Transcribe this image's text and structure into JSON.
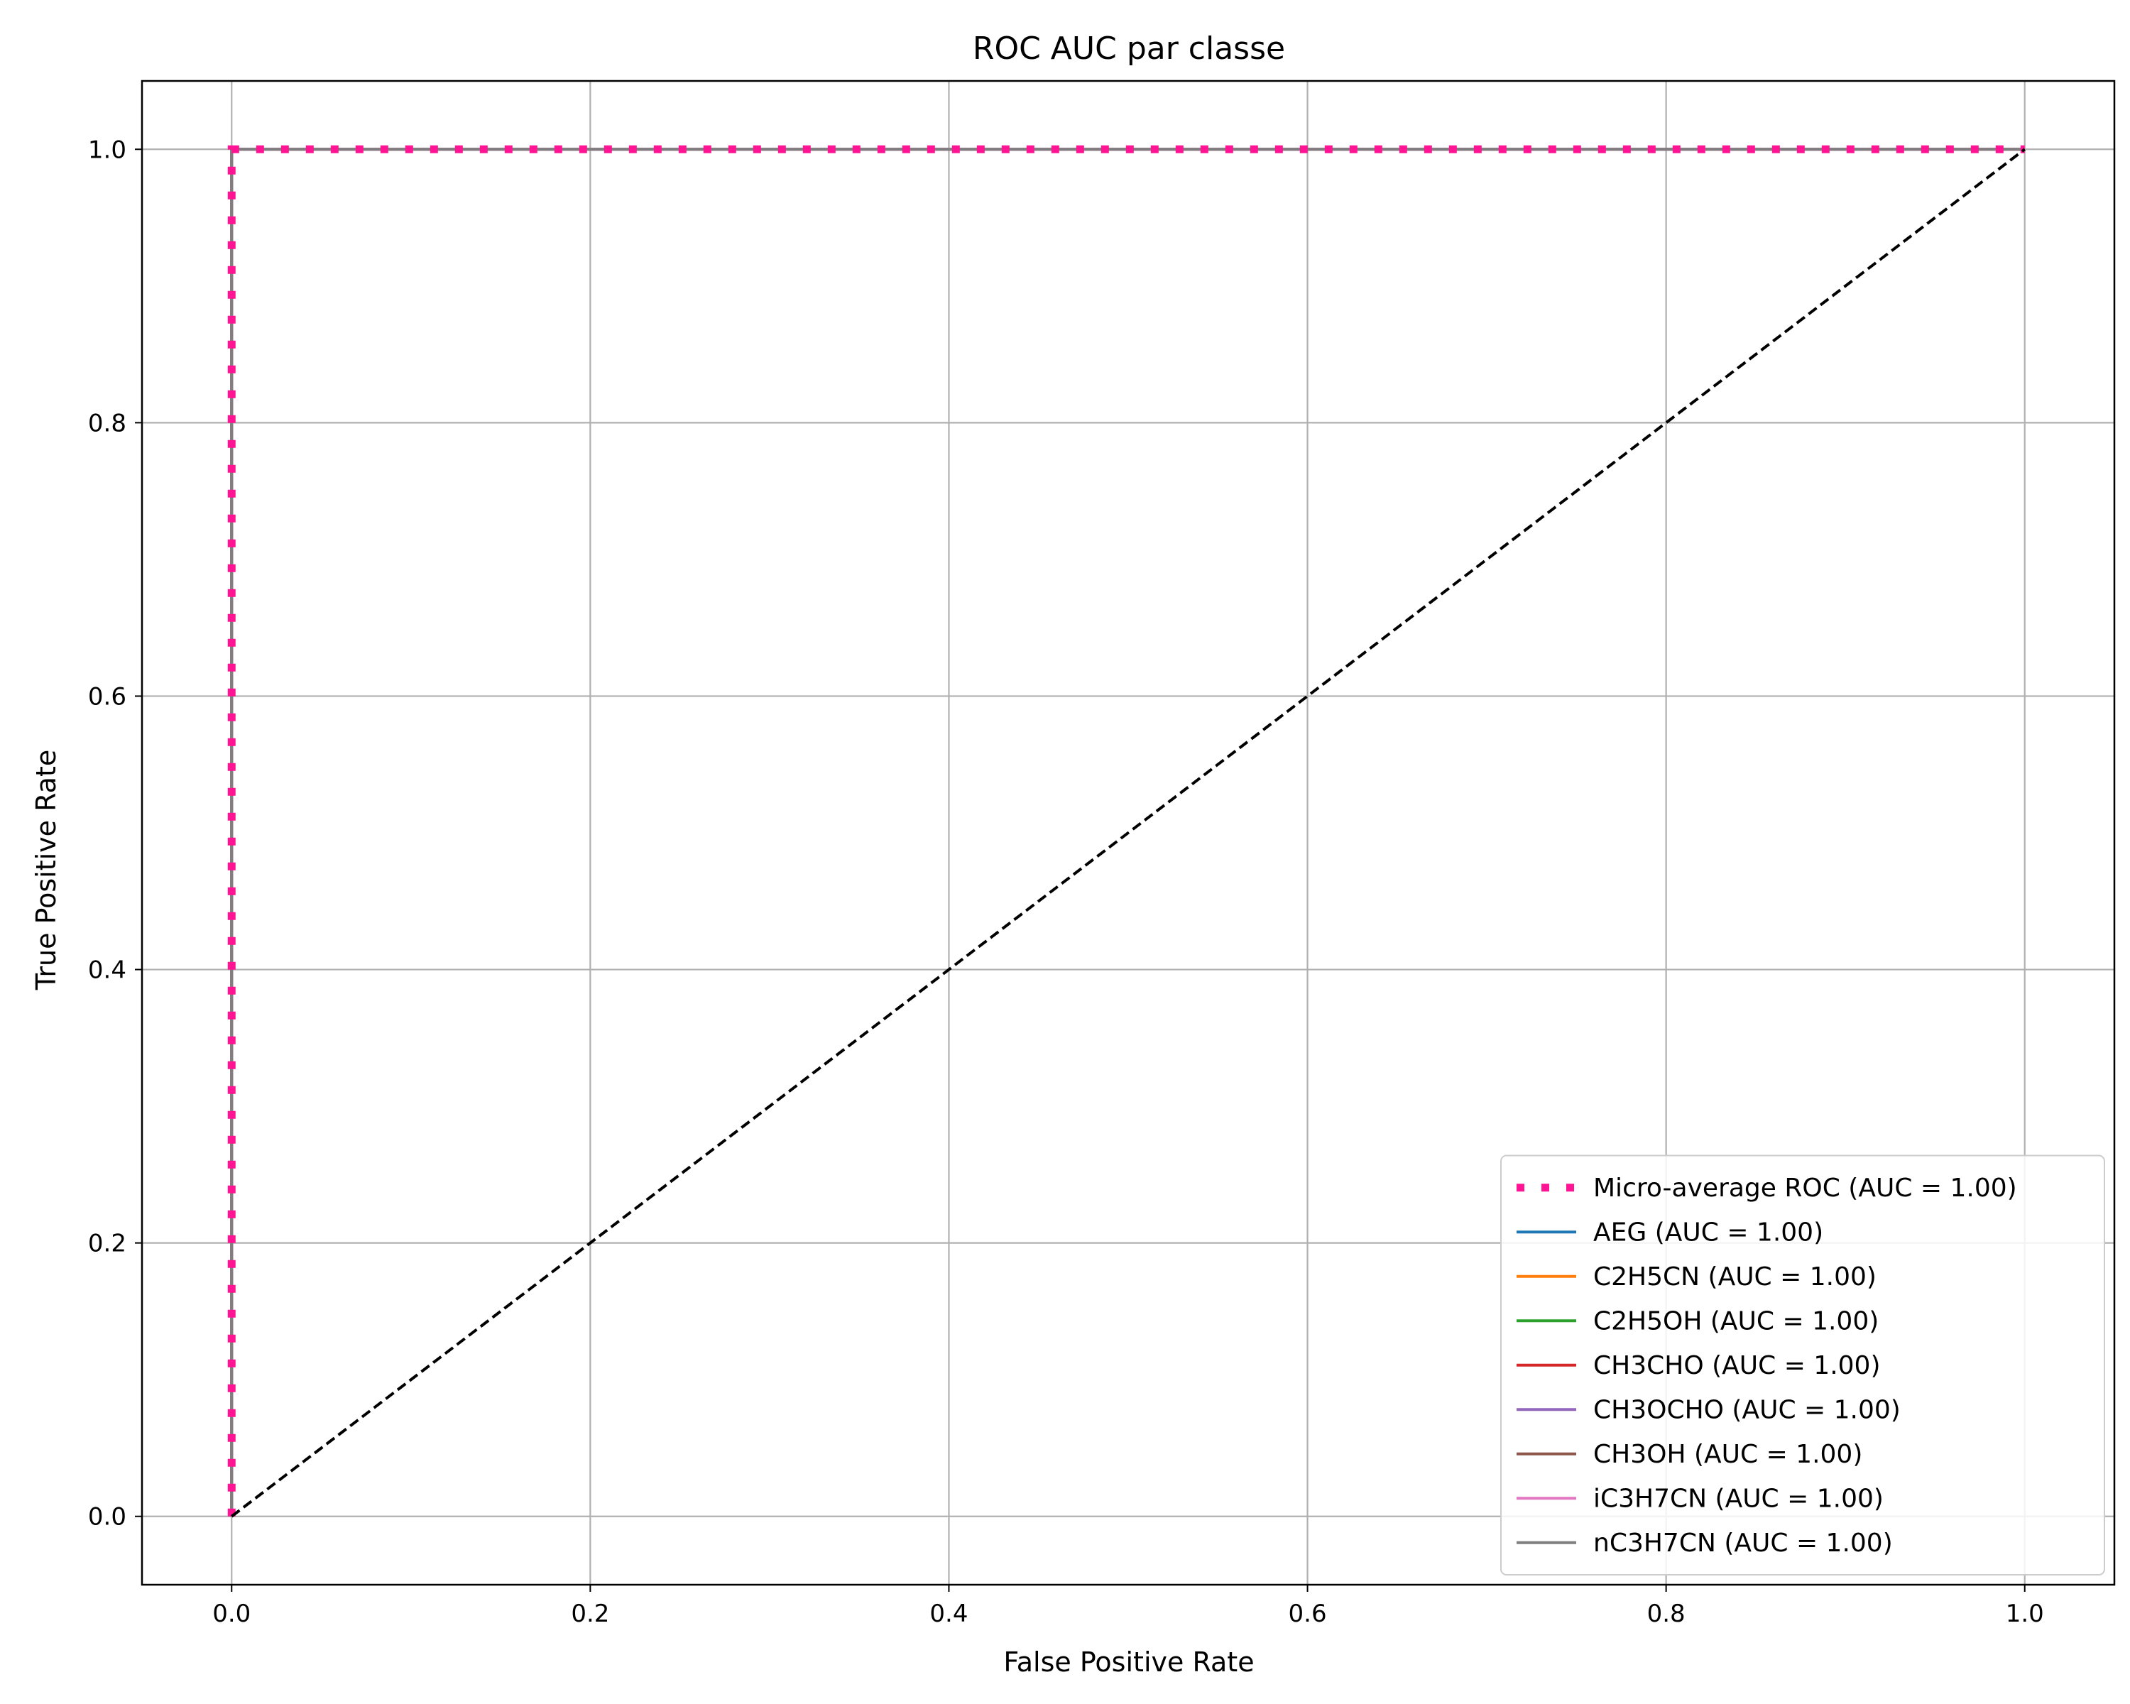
{
  "chart_data": {
    "type": "line",
    "title": "ROC AUC par classe",
    "xlabel": "False Positive Rate",
    "ylabel": "True Positive Rate",
    "xlim": [
      -0.05,
      1.05
    ],
    "ylim": [
      -0.05,
      1.05
    ],
    "xticks": [
      0.0,
      0.2,
      0.4,
      0.6,
      0.8,
      1.0
    ],
    "yticks": [
      0.0,
      0.2,
      0.4,
      0.6,
      0.8,
      1.0
    ],
    "xtick_labels": [
      "0.0",
      "0.2",
      "0.4",
      "0.6",
      "0.8",
      "1.0"
    ],
    "ytick_labels": [
      "0.0",
      "0.2",
      "0.4",
      "0.6",
      "0.8",
      "1.0"
    ],
    "grid": true,
    "legend_position": "lower-right",
    "series": [
      {
        "name": "Micro-average ROC (AUC = 1.00)",
        "color": "#ff1493",
        "style": "dotted",
        "x": [
          0.0,
          0.0,
          1.0
        ],
        "y": [
          0.0,
          1.0,
          1.0
        ]
      },
      {
        "name": "AEG (AUC = 1.00)",
        "color": "#1f77b4",
        "style": "solid",
        "x": [
          0.0,
          0.0,
          1.0
        ],
        "y": [
          0.0,
          1.0,
          1.0
        ]
      },
      {
        "name": "C2H5CN (AUC = 1.00)",
        "color": "#ff7f0e",
        "style": "solid",
        "x": [
          0.0,
          0.0,
          1.0
        ],
        "y": [
          0.0,
          1.0,
          1.0
        ]
      },
      {
        "name": "C2H5OH (AUC = 1.00)",
        "color": "#2ca02c",
        "style": "solid",
        "x": [
          0.0,
          0.0,
          1.0
        ],
        "y": [
          0.0,
          1.0,
          1.0
        ]
      },
      {
        "name": "CH3CHO (AUC = 1.00)",
        "color": "#d62728",
        "style": "solid",
        "x": [
          0.0,
          0.0,
          1.0
        ],
        "y": [
          0.0,
          1.0,
          1.0
        ]
      },
      {
        "name": "CH3OCHO (AUC = 1.00)",
        "color": "#9467bd",
        "style": "solid",
        "x": [
          0.0,
          0.0,
          1.0
        ],
        "y": [
          0.0,
          1.0,
          1.0
        ]
      },
      {
        "name": "CH3OH (AUC = 1.00)",
        "color": "#8c564b",
        "style": "solid",
        "x": [
          0.0,
          0.0,
          1.0
        ],
        "y": [
          0.0,
          1.0,
          1.0
        ]
      },
      {
        "name": "iC3H7CN (AUC = 1.00)",
        "color": "#e377c2",
        "style": "solid",
        "x": [
          0.0,
          0.0,
          1.0
        ],
        "y": [
          0.0,
          1.0,
          1.0
        ]
      },
      {
        "name": "nC3H7CN (AUC = 1.00)",
        "color": "#7f7f7f",
        "style": "solid",
        "x": [
          0.0,
          0.0,
          1.0
        ],
        "y": [
          0.0,
          1.0,
          1.0
        ]
      }
    ],
    "reference_line": {
      "color": "#000000",
      "style": "dashed",
      "x": [
        0.0,
        1.0
      ],
      "y": [
        0.0,
        1.0
      ]
    }
  }
}
